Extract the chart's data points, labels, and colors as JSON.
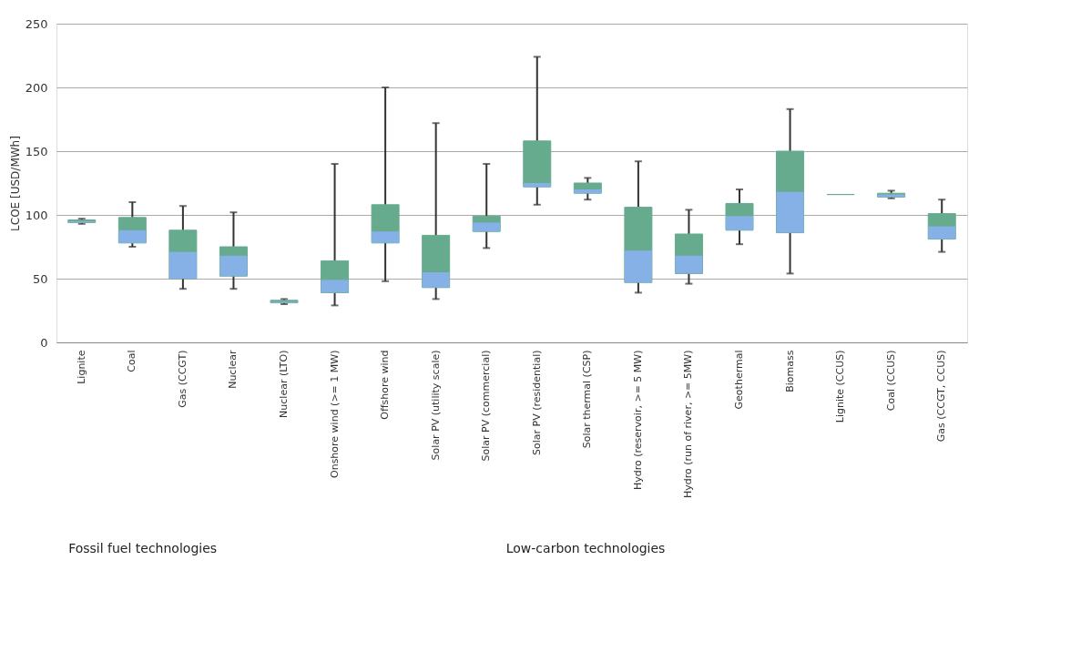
{
  "chart_data": {
    "type": "box",
    "ylabel": "LCOE [USD/MWh]",
    "categories": [
      "Lignite",
      "Coal",
      "Gas (CCGT)",
      "Nuclear",
      "Nuclear (LTO)",
      "Onshore wind (>= 1 MW)",
      "Offshore wind",
      "Solar PV (utility scale)",
      "Solar PV (commercial)",
      "Solar PV (residential)",
      "Solar thermal (CSP)",
      "Hydro (reservoir, >= 5 MW)",
      "Hydro (run of river, >= 5MW)",
      "Geothermal",
      "Biomass",
      "Lignite (CCUS)",
      "Coal (CCUS)",
      "Gas (CCGT, CCUS)"
    ],
    "colors": [
      "#86b1e6",
      "#86b1e6",
      "#86b1e6",
      "#86b1e6",
      "#86b1e6",
      "#86b1e6",
      "#86b1e6",
      "#86b1e6",
      "#86b1e6",
      "#86b1e6",
      "#86b1e6",
      "#86b1e6",
      "#86b1e6",
      "#86b1e6",
      "#86b1e6",
      "#86b1e6",
      "#86b1e6",
      "#86b1e6"
    ],
    "series": [
      {
        "color": "#67ab8e",
        "boxes": [
          {
            "low": 93,
            "q1": 94,
            "median": 95,
            "q3": 96,
            "high": 97
          },
          {
            "low": 75,
            "q1": 78,
            "median": 88,
            "q3": 98,
            "high": 110
          },
          {
            "low": 42,
            "q1": 50,
            "median": 71,
            "q3": 88,
            "high": 107
          },
          {
            "low": 42,
            "q1": 52,
            "median": 68,
            "q3": 75,
            "high": 102
          },
          {
            "low": 30,
            "q1": 31,
            "median": 32,
            "q3": 33,
            "high": 34
          },
          {
            "low": 29,
            "q1": 39,
            "median": 49,
            "q3": 64,
            "high": 140
          },
          {
            "low": 48,
            "q1": 78,
            "median": 87,
            "q3": 108,
            "high": 200
          },
          {
            "low": 34,
            "q1": 43,
            "median": 55,
            "q3": 84,
            "high": 172
          },
          {
            "low": 74,
            "q1": 87,
            "median": 94,
            "q3": 99,
            "high": 140
          },
          {
            "low": 108,
            "q1": 122,
            "median": 125,
            "q3": 158,
            "high": 224
          },
          {
            "low": 112,
            "q1": 117,
            "median": 120,
            "q3": 125,
            "high": 129
          },
          {
            "low": 39,
            "q1": 47,
            "median": 72,
            "q3": 106,
            "high": 142
          },
          {
            "low": 46,
            "q1": 54,
            "median": 68,
            "q3": 85,
            "high": 104
          },
          {
            "low": 77,
            "q1": 88,
            "median": 99,
            "q3": 109,
            "high": 120
          },
          {
            "low": 54,
            "q1": 86,
            "median": 118,
            "q3": 150,
            "high": 183
          },
          {
            "low": 116,
            "q1": 116,
            "median": 116,
            "q3": 116,
            "high": 116
          },
          {
            "low": 113,
            "q1": 114,
            "median": 116,
            "q3": 117,
            "high": 119
          },
          {
            "low": 71,
            "q1": 81,
            "median": 91,
            "q3": 101,
            "high": 112
          }
        ]
      }
    ],
    "ylim": [
      0,
      250
    ],
    "yticks": [
      0,
      50,
      100,
      150,
      200,
      250
    ],
    "grid": "y",
    "annotations": [
      "Fossil fuel technologies",
      "Low-carbon technologies"
    ]
  }
}
